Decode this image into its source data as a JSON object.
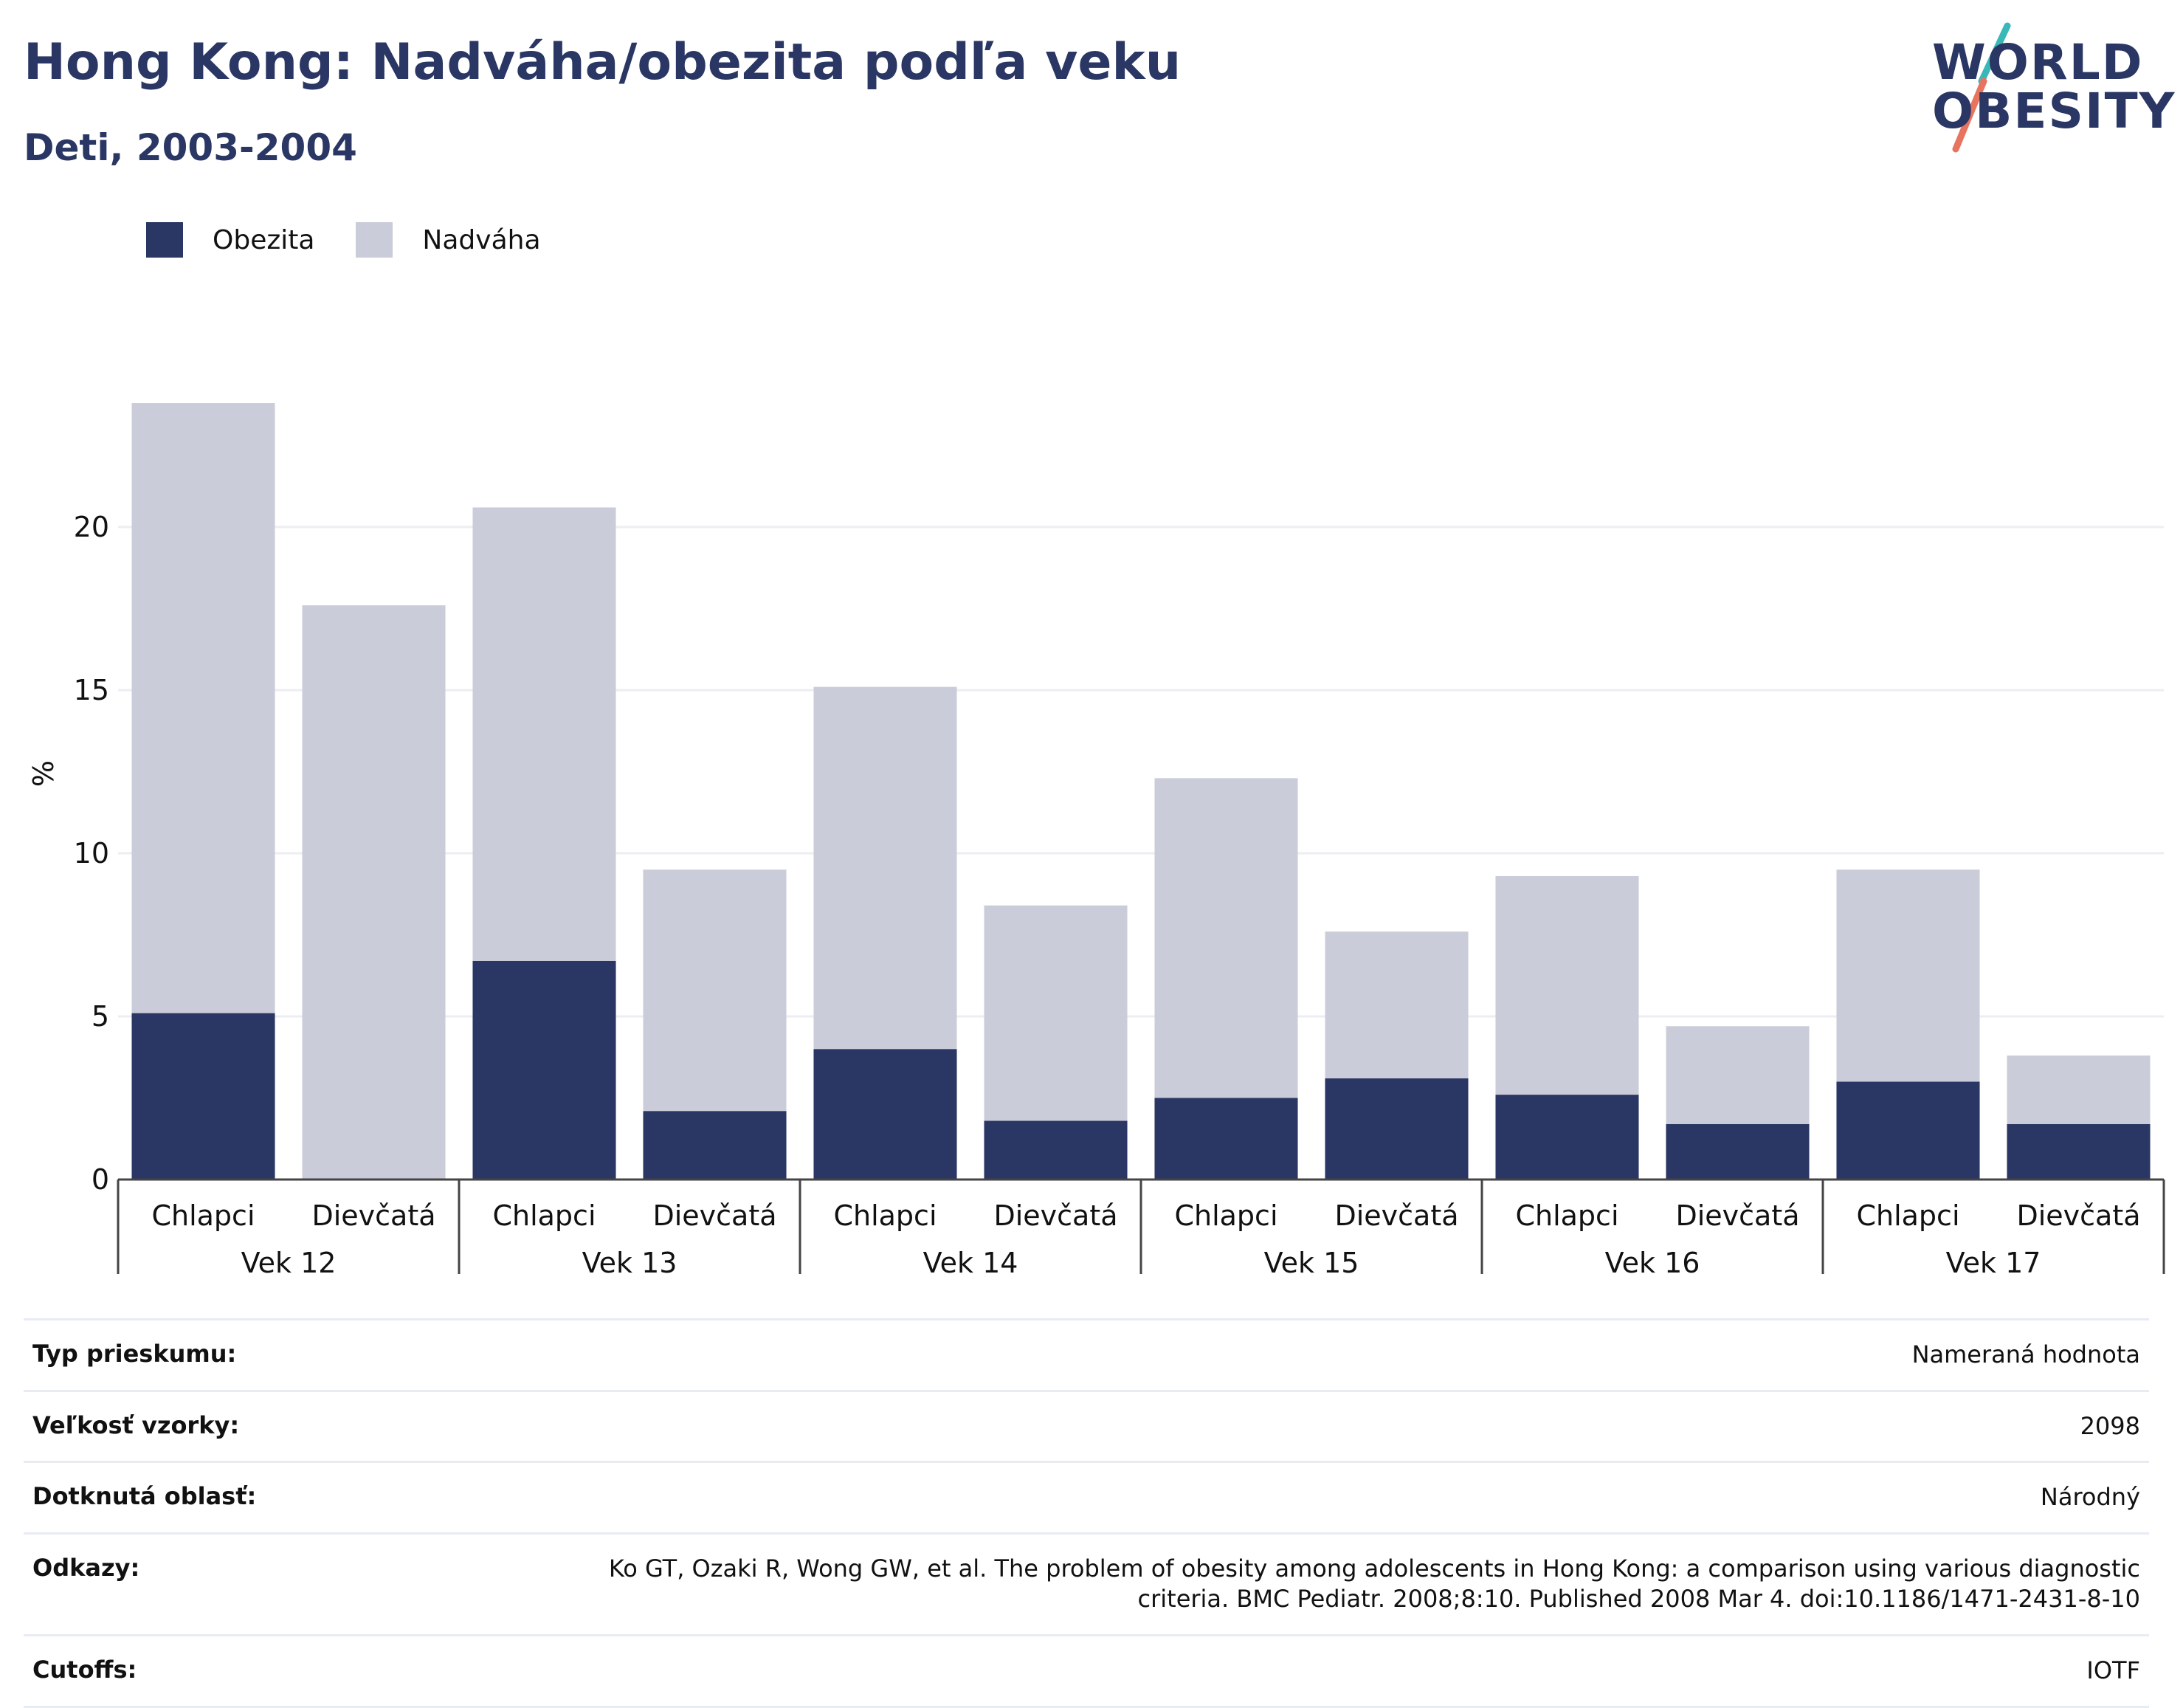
{
  "header": {
    "title": "Hong Kong: Nadváha/obezita podľa veku",
    "subtitle": "Deti, 2003-2004"
  },
  "logo": {
    "line1": "WORLD",
    "line2": "OBESITY"
  },
  "colors": {
    "obesity": "#2a3663",
    "overweight": "#cacdd9",
    "text_dark": "#2a3663",
    "grid": "#eceef3",
    "logo_slash_teal": "#3ab8b8",
    "logo_slash_coral": "#e8735f"
  },
  "legend": {
    "obesity_label": "Obezita",
    "overweight_label": "Nadváha"
  },
  "chart_data": {
    "type": "bar",
    "stacked": true,
    "ylabel": "%",
    "ylim": [
      0,
      25
    ],
    "yticks": [
      0,
      5,
      10,
      15,
      20
    ],
    "grid": true,
    "legend_position": "top-left",
    "groups": [
      "Vek 12",
      "Vek 13",
      "Vek 14",
      "Vek 15",
      "Vek 16",
      "Vek 17"
    ],
    "subcategories": [
      "Chlapci",
      "Dievčatá"
    ],
    "series": [
      {
        "name": "Obezita",
        "values": [
          5.1,
          0,
          6.7,
          2.1,
          4.0,
          1.8,
          2.5,
          3.1,
          2.6,
          1.7,
          3.0,
          1.7
        ]
      },
      {
        "name": "Nadváha",
        "values": [
          18.7,
          17.6,
          13.9,
          7.4,
          11.1,
          6.6,
          9.8,
          4.5,
          6.7,
          3.0,
          6.5,
          2.1
        ]
      }
    ]
  },
  "info": {
    "rows": [
      {
        "key": "Typ prieskumu:",
        "value": "Nameraná hodnota"
      },
      {
        "key": "Veľkosť vzorky:",
        "value": "2098"
      },
      {
        "key": "Dotknutá oblasť:",
        "value": "Národný"
      },
      {
        "key": "Odkazy:",
        "value_lines": [
          "Ko GT, Ozaki R, Wong GW, et al. The problem of obesity among adolescents in Hong Kong: a comparison using various diagnostic",
          "criteria. BMC Pediatr. 2008;8:10. Published 2008 Mar 4. doi:10.1186/1471-2431-8-10"
        ]
      },
      {
        "key": "Cutoffs:",
        "value": "IOTF"
      }
    ]
  }
}
